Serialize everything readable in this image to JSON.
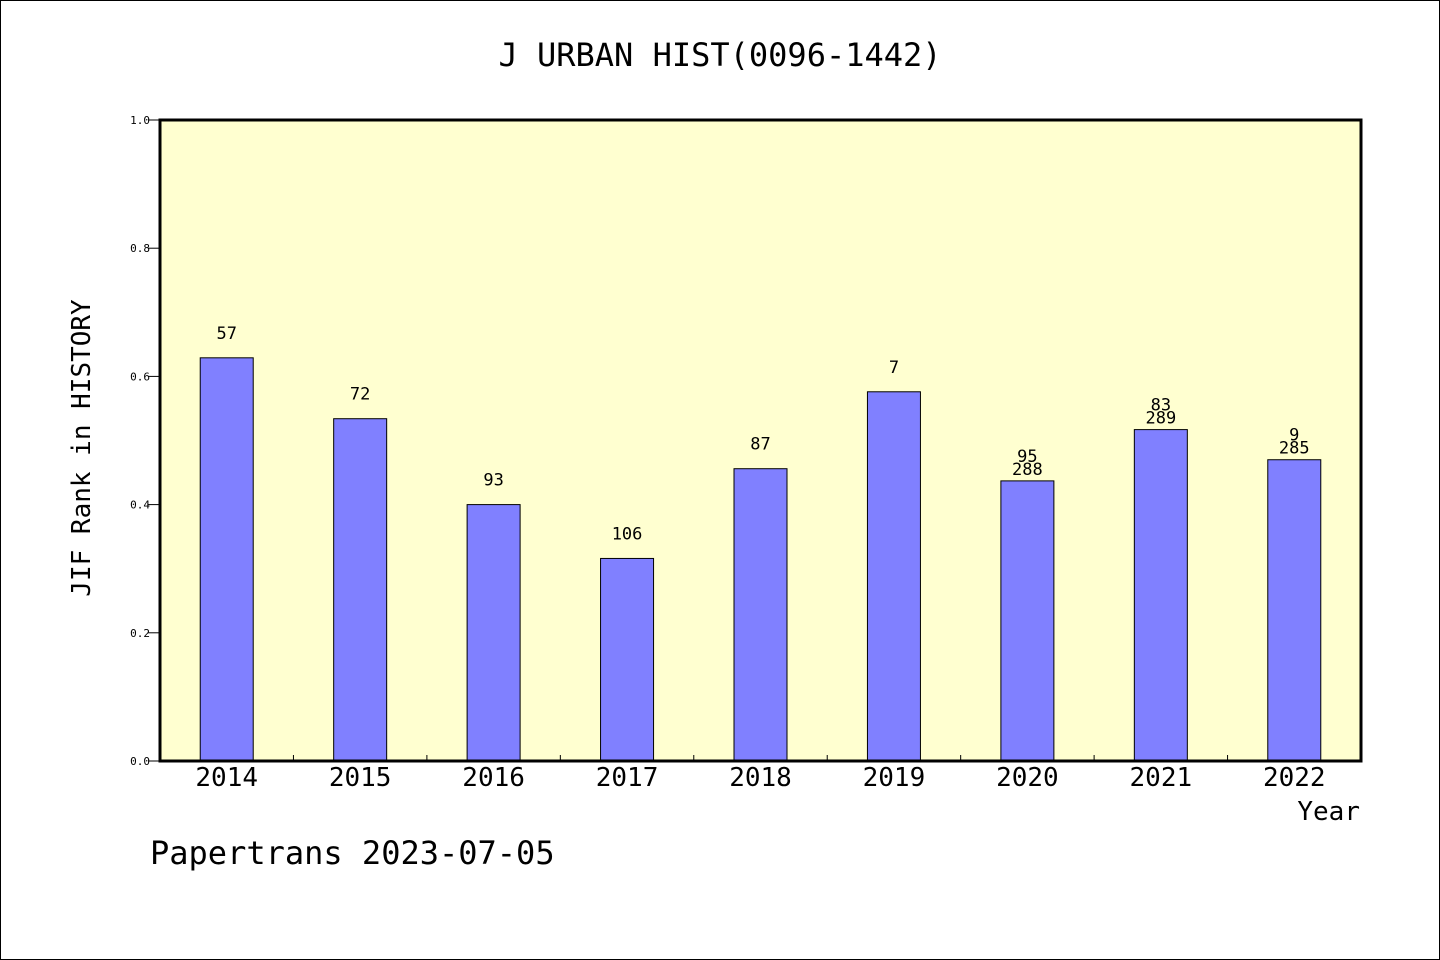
{
  "chart_data": {
    "type": "bar",
    "title": "J URBAN HIST(0096-1442)",
    "xlabel": "Year",
    "ylabel": "JIF Rank in HISTORY",
    "ylim": [
      0,
      1.0
    ],
    "yticks": [
      "0.0",
      "0.2",
      "0.4",
      "0.6",
      "0.8",
      "1.0"
    ],
    "categories": [
      "2014",
      "2015",
      "2016",
      "2017",
      "2018",
      "2019",
      "2020",
      "2021",
      "2022"
    ],
    "values": [
      0.629,
      0.534,
      0.4,
      0.316,
      0.456,
      0.576,
      0.437,
      0.517,
      0.47
    ],
    "labels": [
      [
        "57"
      ],
      [
        "72"
      ],
      [
        "93"
      ],
      [
        "106"
      ],
      [
        "87"
      ],
      [
        "7"
      ],
      [
        "95",
        "288"
      ],
      [
        "83",
        "289"
      ],
      [
        "9",
        "285"
      ]
    ],
    "grid": false,
    "colors": {
      "plot_background": "#ffffd0",
      "bar_fill": "#8080ff",
      "bar_stroke": "#000000",
      "axis": "#000000"
    }
  },
  "footer": {
    "credit": "Papertrans 2023-07-05"
  }
}
